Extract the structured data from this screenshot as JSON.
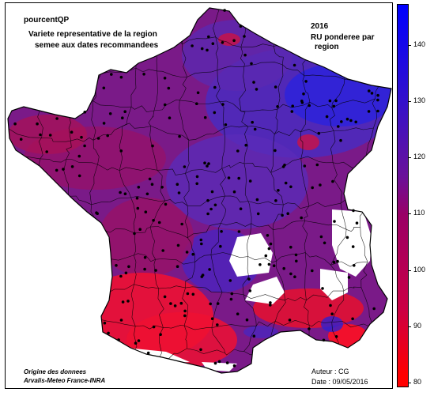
{
  "title": {
    "variable": "pourcentQP",
    "line1": "Variete representative de la region",
    "line2": "semee aux dates recommandees",
    "year": "2016",
    "ru_line1": "RU ponderee par",
    "ru_line2": "region"
  },
  "footer": {
    "source_line1": "Origine des donnees",
    "source_line2": "Arvalis-Meteo France-INRA",
    "author": "Auteur : CG",
    "date": "Date : 09/05/2016"
  },
  "legend": {
    "ticks": [
      "140",
      "130",
      "120",
      "110",
      "100",
      "90",
      "80"
    ],
    "range": [
      80,
      147
    ],
    "colors": {
      "low": "#ff0000",
      "mid": "#990066",
      "high": "#0000ff"
    }
  },
  "colors": {
    "red": "#ee1133",
    "crimson": "#cc1144",
    "magenta": "#991166",
    "purple": "#772299",
    "violet": "#5522bb",
    "blue": "#2222dd"
  }
}
